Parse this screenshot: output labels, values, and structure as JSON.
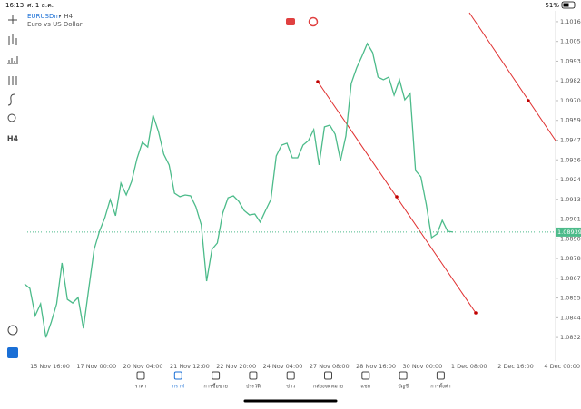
{
  "status_bar": {
    "time": "16:13",
    "date": "ศ. 1 ธ.ค.",
    "battery": "51%"
  },
  "symbol": {
    "name": "EURUSDm",
    "timeframe": "• H4",
    "description": "Euro vs US Dollar"
  },
  "toolbar": {
    "timeframe": "H4"
  },
  "chart_data": {
    "type": "line",
    "color": "#4cbb8a",
    "values": [
      1.08637,
      1.08611,
      1.08452,
      1.08521,
      1.08325,
      1.08415,
      1.08521,
      1.08759,
      1.08547,
      1.08526,
      1.08558,
      1.08378,
      1.08611,
      1.08838,
      1.08944,
      1.09023,
      1.09129,
      1.09034,
      1.09224,
      1.09155,
      1.09234,
      1.09367,
      1.09462,
      1.09435,
      1.0962,
      1.09525,
      1.09393,
      1.0933,
      1.09166,
      1.09145,
      1.09155,
      1.0915,
      1.09086,
      1.08981,
      1.08653,
      1.08838,
      1.08875,
      1.09049,
      1.09139,
      1.0915,
      1.09118,
      1.09065,
      1.09039,
      1.09044,
      1.08997,
      1.09065,
      1.09129,
      1.09383,
      1.09446,
      1.09457,
      1.09372,
      1.09372,
      1.09446,
      1.09472,
      1.09536,
      1.0933,
      1.09552,
      1.09562,
      1.09509,
      1.09356,
      1.09499,
      1.09805,
      1.09895,
      1.09964,
      1.10038,
      1.09985,
      1.09842,
      1.09827,
      1.09842,
      1.09737,
      1.09827,
      1.0971,
      1.09747,
      1.09298,
      1.09261,
      1.09102,
      1.08907,
      1.08928,
      1.09007,
      1.08944,
      1.08939
    ],
    "ylim": [
      1.08204,
      1.10228
    ],
    "yticks": [
      1.10165,
      {
        "value": 1.1005,
        "label": "1.10050"
      },
      1.09935,
      {
        "value": 1.0982,
        "label": "1.09820"
      },
      1.09705,
      {
        "value": 1.0959,
        "label": "1.09590"
      },
      1.09475,
      {
        "value": 1.0936,
        "label": "1.09360"
      },
      1.09245,
      {
        "value": 1.0913,
        "label": "1.09130"
      },
      1.09015,
      {
        "value": 1.089,
        "label": "1.08900"
      },
      1.08785,
      {
        "value": 1.0867,
        "label": "1.08670"
      },
      1.08555,
      {
        "value": 1.0844,
        "label": "1.08440"
      },
      1.08325
    ],
    "x_tick_labels": [
      "15 Nov 16:00",
      "17 Nov 00:00",
      "20 Nov 04:00",
      "21 Nov 12:00",
      "22 Nov 20:00",
      "24 Nov 04:00",
      "27 Nov 08:00",
      "28 Nov 16:00",
      "30 Nov 00:00",
      "1 Dec 08:00",
      "2 Dec 16:00",
      "4 Dec 00:00"
    ],
    "current_price": 1.08939
  },
  "nav": {
    "items": [
      "ราคา",
      "กราฟ",
      "การซื้อขาย",
      "ประวัติ",
      "ข่าว",
      "กล่องจดหมาย",
      "แชท",
      "บัญชี",
      "การตั้งค่า"
    ],
    "active": 1
  }
}
